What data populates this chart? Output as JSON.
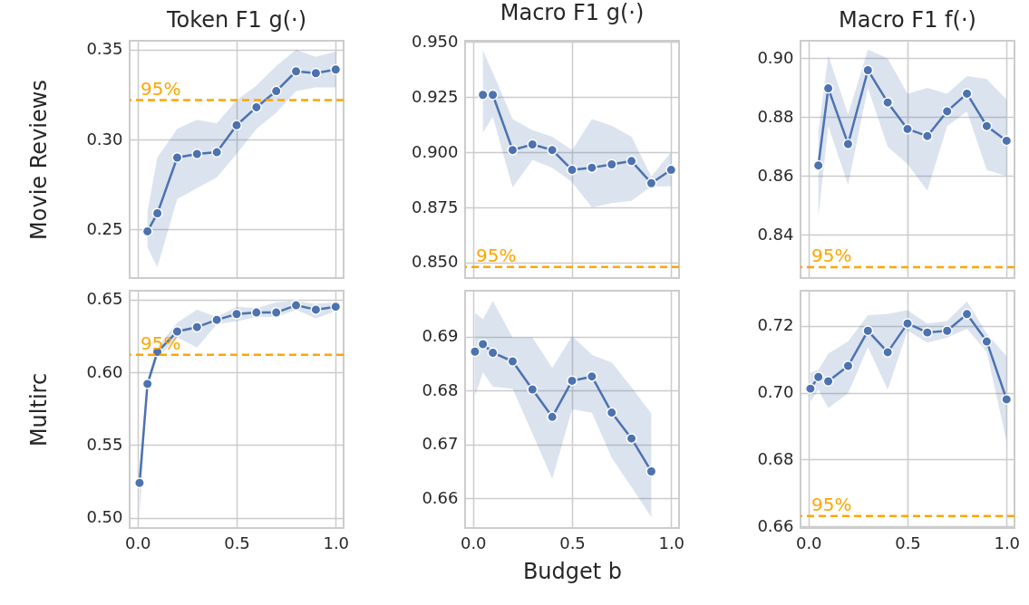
{
  "chart_data": [
    {
      "type": "line",
      "title": "Token F1 g(·)",
      "ylabel": "Movie Reviews",
      "tick_labels": "y",
      "grid": true,
      "marker": "circle",
      "xlim": [
        -0.04,
        1.04
      ],
      "xticks": [
        0,
        0.5,
        1
      ],
      "ylim": [
        0.223,
        0.355
      ],
      "yticks": [
        {
          "value": 0.25,
          "label": "0.25"
        },
        {
          "value": 0.3,
          "label": "0.30"
        },
        {
          "value": 0.35,
          "label": "0.35"
        }
      ],
      "ref_lines": [
        {
          "axis": "y",
          "value": 0.322,
          "color": "#ffa500",
          "line_style": "dashed"
        }
      ],
      "annotations": [
        {
          "text": "95%",
          "y": 0.322
        }
      ],
      "series": [
        {
          "color": "#4c72b0",
          "x": [
            0.05,
            0.1,
            0.2,
            0.3,
            0.4,
            0.5,
            0.6,
            0.7,
            0.8,
            0.9,
            1.0
          ],
          "values": [
            0.249,
            0.259,
            0.29,
            0.292,
            0.293,
            0.308,
            0.318,
            0.327,
            0.338,
            0.337,
            0.339
          ],
          "lower": [
            0.24,
            0.229,
            0.267,
            0.273,
            0.279,
            0.292,
            0.306,
            0.315,
            0.327,
            0.329,
            0.329
          ],
          "upper": [
            0.26,
            0.29,
            0.306,
            0.311,
            0.309,
            0.322,
            0.33,
            0.341,
            0.35,
            0.346,
            0.349
          ]
        }
      ]
    },
    {
      "type": "line",
      "title": "Macro F1 g(·)",
      "tick_labels": "y",
      "grid": true,
      "marker": "circle",
      "xlim": [
        -0.04,
        1.04
      ],
      "xticks": [
        0,
        0.5,
        1
      ],
      "ylim": [
        0.843,
        0.9505
      ],
      "yticks": [
        {
          "value": 0.85,
          "label": "0.850"
        },
        {
          "value": 0.875,
          "label": "0.875"
        },
        {
          "value": 0.9,
          "label": "0.900"
        },
        {
          "value": 0.925,
          "label": "0.925"
        },
        {
          "value": 0.95,
          "label": "0.950"
        }
      ],
      "ref_lines": [
        {
          "axis": "y",
          "value": 0.848,
          "color": "#ffa500",
          "line_style": "dashed"
        }
      ],
      "annotations": [
        {
          "text": "95%",
          "y": 0.848
        }
      ],
      "series": [
        {
          "color": "#4c72b0",
          "x": [
            0.05,
            0.1,
            0.2,
            0.3,
            0.4,
            0.5,
            0.6,
            0.7,
            0.8,
            0.9,
            1.0
          ],
          "values": [
            0.926,
            0.926,
            0.901,
            0.9035,
            0.901,
            0.892,
            0.893,
            0.8945,
            0.896,
            0.886,
            0.892
          ],
          "lower": [
            0.909,
            0.916,
            0.884,
            0.8965,
            0.893,
            0.8865,
            0.875,
            0.877,
            0.878,
            0.8845,
            0.8845
          ],
          "upper": [
            0.946,
            0.936,
            0.915,
            0.91,
            0.907,
            0.901,
            0.915,
            0.912,
            0.907,
            0.889,
            0.9
          ]
        }
      ]
    },
    {
      "type": "line",
      "title": "Macro F1 f(·)",
      "tick_labels": "y",
      "grid": true,
      "marker": "circle",
      "xlim": [
        -0.04,
        1.04
      ],
      "xticks": [
        0,
        0.5,
        1
      ],
      "ylim": [
        0.8253,
        0.906
      ],
      "yticks": [
        {
          "value": 0.84,
          "label": "0.84"
        },
        {
          "value": 0.86,
          "label": "0.86"
        },
        {
          "value": 0.88,
          "label": "0.88"
        },
        {
          "value": 0.9,
          "label": "0.90"
        }
      ],
      "ref_lines": [
        {
          "axis": "y",
          "value": 0.829,
          "color": "#ffa500",
          "line_style": "dashed"
        }
      ],
      "annotations": [
        {
          "text": "95%",
          "y": 0.829
        }
      ],
      "series": [
        {
          "color": "#4c72b0",
          "x": [
            0.05,
            0.1,
            0.2,
            0.3,
            0.4,
            0.5,
            0.6,
            0.7,
            0.8,
            0.9,
            1.0
          ],
          "values": [
            0.8636,
            0.8898,
            0.8709,
            0.896,
            0.885,
            0.876,
            0.8736,
            0.882,
            0.888,
            0.877,
            0.872
          ],
          "lower": [
            0.846,
            0.877,
            0.857,
            0.89,
            0.87,
            0.864,
            0.855,
            0.877,
            0.882,
            0.862,
            0.86
          ],
          "upper": [
            0.875,
            0.901,
            0.881,
            0.903,
            0.9,
            0.888,
            0.89,
            0.888,
            0.894,
            0.893,
            0.886
          ]
        }
      ]
    },
    {
      "type": "line",
      "ylabel": "Multirc",
      "grid": true,
      "marker": "circle",
      "xlim": [
        -0.04,
        1.04
      ],
      "xticks": [
        {
          "value": 0,
          "label": "0.0"
        },
        {
          "value": 0.5,
          "label": "0.5"
        },
        {
          "value": 1,
          "label": "1.0"
        }
      ],
      "ylim": [
        0.493,
        0.656
      ],
      "yticks": [
        {
          "value": 0.5,
          "label": "0.50"
        },
        {
          "value": 0.55,
          "label": "0.55"
        },
        {
          "value": 0.6,
          "label": "0.60"
        },
        {
          "value": 0.65,
          "label": "0.65"
        }
      ],
      "ref_lines": [
        {
          "axis": "y",
          "value": 0.612,
          "color": "#ffa500",
          "line_style": "dashed"
        }
      ],
      "annotations": [
        {
          "text": "95%",
          "y": 0.612
        }
      ],
      "series": [
        {
          "color": "#4c72b0",
          "x": [
            0.01,
            0.05,
            0.1,
            0.2,
            0.3,
            0.4,
            0.5,
            0.6,
            0.7,
            0.8,
            0.9,
            1.0
          ],
          "values": [
            0.524,
            0.592,
            0.614,
            0.628,
            0.631,
            0.636,
            0.64,
            0.641,
            0.641,
            0.646,
            0.643,
            0.645
          ],
          "lower": [
            0.501,
            0.589,
            0.61,
            0.624,
            0.617,
            0.633,
            0.635,
            0.638,
            0.638,
            0.643,
            0.637,
            0.642
          ],
          "upper": [
            0.531,
            0.594,
            0.617,
            0.634,
            0.643,
            0.638,
            0.645,
            0.644,
            0.648,
            0.649,
            0.647,
            0.648
          ]
        }
      ]
    },
    {
      "type": "line",
      "xlabel": "Budget b",
      "grid": true,
      "marker": "circle",
      "xlim": [
        -0.04,
        1.04
      ],
      "xticks": [
        {
          "value": 0,
          "label": "0.0"
        },
        {
          "value": 0.5,
          "label": "0.5"
        },
        {
          "value": 1,
          "label": "1.0"
        }
      ],
      "ylim": [
        0.6545,
        0.6985
      ],
      "yticks": [
        {
          "value": 0.66,
          "label": "0.66"
        },
        {
          "value": 0.67,
          "label": "0.67"
        },
        {
          "value": 0.68,
          "label": "0.68"
        },
        {
          "value": 0.69,
          "label": "0.69"
        }
      ],
      "series": [
        {
          "color": "#4c72b0",
          "x": [
            0.01,
            0.05,
            0.1,
            0.2,
            0.3,
            0.4,
            0.5,
            0.6,
            0.7,
            0.8,
            0.9
          ],
          "values": [
            0.6872,
            0.6886,
            0.687,
            0.6854,
            0.6802,
            0.6751,
            0.6818,
            0.6826,
            0.6759,
            0.6711,
            0.665
          ],
          "lower": [
            0.679,
            0.6834,
            0.6807,
            0.6803,
            0.672,
            0.6636,
            0.6765,
            0.6759,
            0.6675,
            0.6621,
            0.6565
          ],
          "upper": [
            0.6944,
            0.6932,
            0.6966,
            0.6898,
            0.6898,
            0.6842,
            0.6901,
            0.6866,
            0.6852,
            0.6806,
            0.6757
          ]
        }
      ]
    },
    {
      "type": "line",
      "grid": true,
      "marker": "circle",
      "xlim": [
        -0.04,
        1.04
      ],
      "xticks": [
        {
          "value": 0,
          "label": "0.0"
        },
        {
          "value": 0.5,
          "label": "0.5"
        },
        {
          "value": 1,
          "label": "1.0"
        }
      ],
      "ylim": [
        0.6595,
        0.7305
      ],
      "yticks": [
        {
          "value": 0.66,
          "label": "0.66"
        },
        {
          "value": 0.68,
          "label": "0.68"
        },
        {
          "value": 0.7,
          "label": "0.70"
        },
        {
          "value": 0.72,
          "label": "0.72"
        }
      ],
      "ref_lines": [
        {
          "axis": "y",
          "value": 0.6631,
          "color": "#ffa500",
          "line_style": "dashed"
        }
      ],
      "annotations": [
        {
          "text": "95%",
          "y": 0.6631
        }
      ],
      "series": [
        {
          "color": "#4c72b0",
          "x": [
            0.01,
            0.05,
            0.1,
            0.2,
            0.3,
            0.4,
            0.5,
            0.6,
            0.7,
            0.8,
            0.9,
            1.0
          ],
          "values": [
            0.7012,
            0.7047,
            0.7034,
            0.708,
            0.7185,
            0.7121,
            0.7207,
            0.718,
            0.7185,
            0.7235,
            0.7153,
            0.698
          ],
          "lower": [
            0.6973,
            0.7009,
            0.6954,
            0.6998,
            0.7136,
            0.7009,
            0.7186,
            0.715,
            0.7165,
            0.7191,
            0.7122,
            0.6854
          ],
          "upper": [
            0.7059,
            0.7068,
            0.7117,
            0.7153,
            0.7232,
            0.7235,
            0.7247,
            0.7207,
            0.7214,
            0.7273,
            0.7177,
            0.7109
          ]
        }
      ]
    }
  ]
}
